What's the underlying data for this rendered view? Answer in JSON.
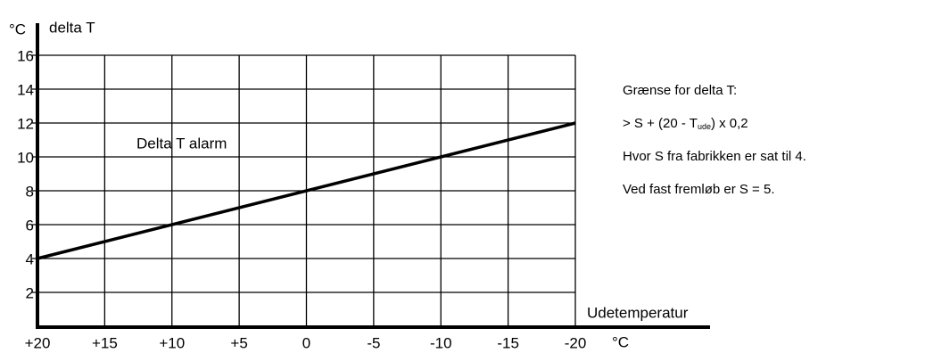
{
  "chart_data": {
    "type": "line",
    "ylabel": "delta T",
    "yunit": "°C",
    "xlabel": "Udetemperatur",
    "xunit": "°C",
    "line_label": "Delta T alarm",
    "x": [
      20,
      -20
    ],
    "values": [
      4,
      12
    ],
    "color": "#000000",
    "xlim": [
      20,
      -20
    ],
    "ylim": [
      0,
      16
    ],
    "xticks": [
      {
        "value": 20,
        "label": "+20"
      },
      {
        "value": 15,
        "label": "+15"
      },
      {
        "value": 10,
        "label": "+10"
      },
      {
        "value": 5,
        "label": "+5"
      },
      0,
      -5,
      -10,
      -15,
      -20
    ],
    "yticks": [
      2,
      4,
      6,
      8,
      10,
      12,
      14,
      16
    ],
    "grid": true,
    "annotations": [
      {
        "text": "Grænse for delta T:"
      },
      {
        "text": "> S + (20 - T",
        "sub": "ude",
        "tail": ") x 0,2"
      },
      {
        "text": "Hvor S fra fabrikken er sat til 4."
      },
      {
        "text": "Ved fast fremløb er S = 5."
      }
    ]
  }
}
